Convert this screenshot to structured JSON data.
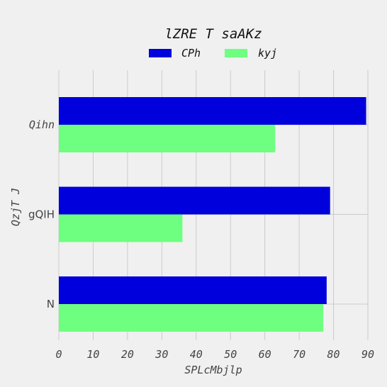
{
  "chart_data": {
    "type": "bar",
    "orientation": "horizontal",
    "title": "lZRE T saAKz",
    "xlabel": "SPLcMbjlp",
    "ylabel": "QzjT J",
    "categories": [
      "Qihn",
      "gQIH",
      "N"
    ],
    "series": [
      {
        "name": "CPh",
        "color": "#0000dd",
        "values": [
          89.5,
          79,
          78
        ]
      },
      {
        "name": "kyj",
        "color": "#6eff80",
        "values": [
          63,
          36,
          77
        ]
      }
    ],
    "xlim": [
      0,
      90
    ],
    "xticks": [
      "0",
      "10",
      "20",
      "30",
      "40",
      "50",
      "60",
      "70",
      "80",
      "90"
    ],
    "grid": true,
    "legend_position": "top-center"
  },
  "colors": {
    "background": "#f0f0f0",
    "grid": "#cbcbcb",
    "text": "#444444"
  }
}
